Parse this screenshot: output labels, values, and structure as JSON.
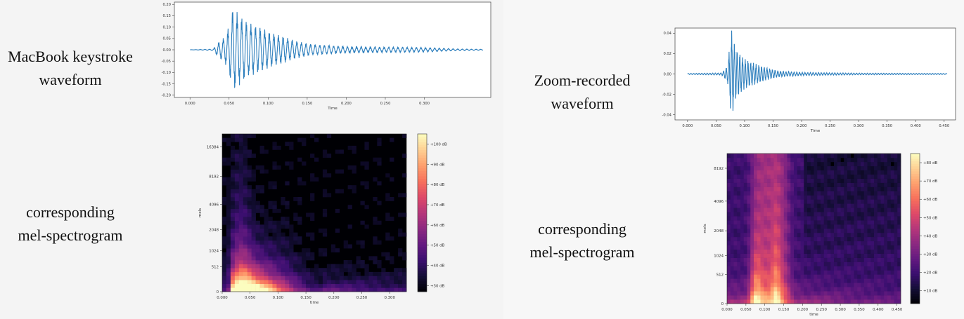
{
  "captions": {
    "macbook_waveform": [
      "MacBook keystroke",
      "waveform"
    ],
    "macbook_spectrogram": [
      "corresponding",
      "mel-spectrogram"
    ],
    "zoom_waveform": [
      "Zoom-recorded",
      "waveform"
    ],
    "zoom_spectrogram": [
      "corresponding",
      "mel-spectrogram"
    ]
  },
  "colors": {
    "waveform": "#2e7fbd",
    "magma_low": "#000004",
    "magma_mid": "#b5367a",
    "magma_high": "#fcfdbf"
  },
  "chart_data": [
    {
      "id": "macbook-waveform",
      "type": "line",
      "title": "",
      "xlabel": "Time",
      "ylabel": "",
      "xlim": [
        -0.02,
        0.385
      ],
      "ylim": [
        -0.21,
        0.21
      ],
      "x_ticks": [
        0.0,
        0.05,
        0.1,
        0.15,
        0.2,
        0.25,
        0.3
      ],
      "x_tick_labels": [
        "0.000",
        "0.050",
        "0.100",
        "0.150",
        "0.200",
        "0.250",
        "0.300"
      ],
      "y_ticks": [
        0.2,
        0.15,
        0.1,
        0.05,
        0.0,
        -0.05,
        -0.1,
        -0.15,
        -0.2
      ],
      "y_tick_labels": [
        "0.20",
        "0.15",
        "0.10",
        "0.05",
        "0.00",
        "-0.05",
        "-0.10",
        "-0.15",
        "-0.20"
      ],
      "grid": false,
      "signal_extent": [
        0.0,
        0.375
      ],
      "envelope": [
        {
          "t": 0.0,
          "a": 0.0
        },
        {
          "t": 0.03,
          "a": 0.003
        },
        {
          "t": 0.035,
          "a": 0.03
        },
        {
          "t": 0.045,
          "a": 0.06
        },
        {
          "t": 0.05,
          "a": 0.11
        },
        {
          "t": 0.055,
          "a": 0.19
        },
        {
          "t": 0.065,
          "a": 0.15
        },
        {
          "t": 0.075,
          "a": 0.12
        },
        {
          "t": 0.09,
          "a": 0.1
        },
        {
          "t": 0.105,
          "a": 0.075
        },
        {
          "t": 0.12,
          "a": 0.06
        },
        {
          "t": 0.135,
          "a": 0.04
        },
        {
          "t": 0.155,
          "a": 0.025
        },
        {
          "t": 0.175,
          "a": 0.02
        },
        {
          "t": 0.2,
          "a": 0.015
        },
        {
          "t": 0.25,
          "a": 0.012
        },
        {
          "t": 0.3,
          "a": 0.01
        },
        {
          "t": 0.34,
          "a": 0.004
        },
        {
          "t": 0.375,
          "a": 0.002
        }
      ]
    },
    {
      "id": "macbook-mel-spectrogram",
      "type": "heatmap",
      "title": "",
      "xlabel": "time",
      "ylabel": "mels",
      "xlim": [
        0.0,
        0.33
      ],
      "x_ticks": [
        0.0,
        0.05,
        0.1,
        0.15,
        0.2,
        0.25,
        0.3
      ],
      "x_tick_labels": [
        "0.000",
        "0.050",
        "0.100",
        "0.150",
        "0.200",
        "0.250",
        "0.300"
      ],
      "y_scale": "mel",
      "y_ticks": [
        0,
        512,
        1024,
        2048,
        4096,
        8192,
        16384
      ],
      "y_tick_labels": [
        "0",
        "512",
        "1024",
        "2048",
        "4096",
        "8192",
        "16384"
      ],
      "colormap": "magma",
      "colorbar_ticks": [
        30,
        40,
        50,
        60,
        70,
        80,
        90,
        100
      ],
      "colorbar_labels": [
        "+30 dB",
        "+40 dB",
        "+50 dB",
        "+60 dB",
        "+70 dB",
        "+80 dB",
        "+90 dB",
        "+100 dB"
      ],
      "colorbar_range": [
        27,
        105
      ]
    },
    {
      "id": "zoom-waveform",
      "type": "line",
      "title": "",
      "xlabel": "Time",
      "ylabel": "",
      "xlim": [
        -0.022,
        0.47
      ],
      "ylim": [
        -0.045,
        0.045
      ],
      "x_ticks": [
        0.0,
        0.05,
        0.1,
        0.15,
        0.2,
        0.25,
        0.3,
        0.35,
        0.4,
        0.45
      ],
      "x_tick_labels": [
        "0.000",
        "0.050",
        "0.100",
        "0.150",
        "0.200",
        "0.250",
        "0.300",
        "0.350",
        "0.400",
        "0.450"
      ],
      "y_ticks": [
        0.04,
        0.02,
        0.0,
        -0.02,
        -0.04
      ],
      "y_tick_labels": [
        "0.04",
        "0.02",
        "0.00",
        "-0.02",
        "-0.04"
      ],
      "grid": false,
      "signal_extent": [
        0.0,
        0.455
      ],
      "envelope": [
        {
          "t": 0.0,
          "a": 0.0005
        },
        {
          "t": 0.06,
          "a": 0.001
        },
        {
          "t": 0.07,
          "a": 0.008
        },
        {
          "t": 0.077,
          "a": 0.044
        },
        {
          "t": 0.085,
          "a": 0.025
        },
        {
          "t": 0.1,
          "a": 0.015
        },
        {
          "t": 0.12,
          "a": 0.01
        },
        {
          "t": 0.14,
          "a": 0.006
        },
        {
          "t": 0.16,
          "a": 0.003
        },
        {
          "t": 0.2,
          "a": 0.0015
        },
        {
          "t": 0.3,
          "a": 0.0008
        },
        {
          "t": 0.455,
          "a": 0.0005
        }
      ]
    },
    {
      "id": "zoom-mel-spectrogram",
      "type": "heatmap",
      "title": "",
      "xlabel": "time",
      "ylabel": "mels",
      "xlim": [
        0.0,
        0.46
      ],
      "x_ticks": [
        0.0,
        0.05,
        0.1,
        0.15,
        0.2,
        0.25,
        0.3,
        0.35,
        0.4,
        0.45
      ],
      "x_tick_labels": [
        "0.000",
        "0.050",
        "0.100",
        "0.150",
        "0.200",
        "0.250",
        "0.300",
        "0.350",
        "0.400",
        "0.450"
      ],
      "y_scale": "mel",
      "y_ticks": [
        0,
        512,
        1024,
        2048,
        4096,
        8192
      ],
      "y_tick_labels": [
        "0",
        "512",
        "1024",
        "2048",
        "4096",
        "8192"
      ],
      "colormap": "magma",
      "colorbar_ticks": [
        10,
        20,
        30,
        40,
        50,
        60,
        70,
        80
      ],
      "colorbar_labels": [
        "+10 dB",
        "+20 dB",
        "+30 dB",
        "+40 dB",
        "+50 dB",
        "+60 dB",
        "+70 dB",
        "+80 dB"
      ],
      "colorbar_range": [
        3,
        85
      ]
    }
  ]
}
